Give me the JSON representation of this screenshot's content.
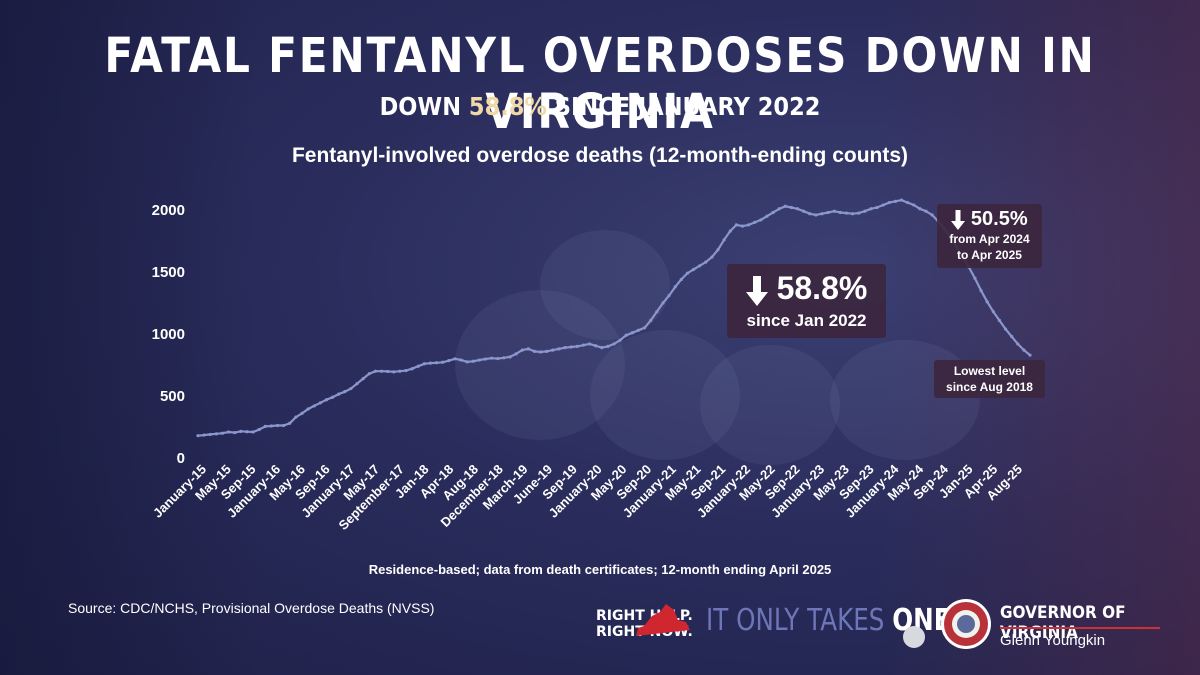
{
  "header": {
    "title": "FATAL FENTANYL OVERDOSES DOWN IN VIRGINIA",
    "subtitle_pre": "DOWN ",
    "subtitle_highlight": "58.8%",
    "subtitle_post": " SINCE JANUARY 2022"
  },
  "chart_data": {
    "type": "line",
    "title": "Fentanyl-involved overdose deaths (12-month-ending counts)",
    "xlabel": "",
    "ylabel": "",
    "ylim": [
      0,
      2000
    ],
    "y_ticks": [
      "0",
      "500",
      "1000",
      "1500",
      "2000"
    ],
    "grid": false,
    "x_tick_labels": [
      "January-15",
      "May-15",
      "Sep-15",
      "January-16",
      "May-16",
      "Sep-16",
      "January-17",
      "May-17",
      "September-17",
      "Jan-18",
      "Apr-18",
      "Aug-18",
      "December-18",
      "March-19",
      "June-19",
      "Sep-19",
      "January-20",
      "May-20",
      "Sep-20",
      "January-21",
      "May-21",
      "Sep-21",
      "January-22",
      "May-22",
      "Sep-22",
      "January-23",
      "May-23",
      "Sep-23",
      "January-24",
      "May-24",
      "Sep-24",
      "Jan-25",
      "Apr-25",
      "Aug-25"
    ],
    "series": [
      {
        "values": [
          180,
          185,
          190,
          195,
          200,
          210,
          205,
          215,
          212,
          210,
          230,
          255,
          258,
          262,
          262,
          280,
          330,
          360,
          395,
          420,
          445,
          470,
          490,
          515,
          535,
          560,
          600,
          640,
          680,
          700,
          700,
          698,
          695,
          700,
          705,
          720,
          740,
          760,
          765,
          768,
          772,
          785,
          800,
          790,
          775,
          780,
          790,
          798,
          805,
          802,
          808,
          815,
          840,
          870,
          880,
          860,
          855,
          860,
          870,
          880,
          890,
          895,
          900,
          910,
          920,
          905,
          890,
          900,
          920,
          950,
          990,
          1010,
          1030,
          1050,
          1110,
          1180,
          1250,
          1310,
          1380,
          1440,
          1490,
          1520,
          1550,
          1580,
          1620,
          1680,
          1760,
          1830,
          1880,
          1870,
          1880,
          1900,
          1920,
          1950,
          1980,
          2010,
          2030,
          2020,
          2010,
          1990,
          1970,
          1960,
          1970,
          1980,
          1990,
          1980,
          1975,
          1970,
          1975,
          1990,
          2010,
          2020,
          2040,
          2060,
          2070,
          2080,
          2060,
          2040,
          2010,
          1990,
          1960,
          1910,
          1850,
          1780,
          1700,
          1620,
          1540,
          1450,
          1350,
          1260,
          1180,
          1110,
          1040,
          980,
          920,
          870,
          830
        ]
      }
    ],
    "annotations": [
      {
        "pct": "58.8%",
        "text": "since Jan 2022"
      },
      {
        "pct": "50.5%",
        "text1": "from Apr 2024",
        "text2": "to Apr 2025"
      },
      {
        "text1": "Lowest level",
        "text2": "since Aug 2018"
      }
    ]
  },
  "footer": {
    "note": "Residence-based; data from death certificates; 12-month ending April 2025",
    "source": "Source: CDC/NCHS, Provisional Overdose Deaths (NVSS)",
    "rh_line1": "RIGHT HELP.",
    "rh_line2": "RIGHT NOW.",
    "ito_pre": "IT ONLY TAKES ",
    "ito_bold": "ONE",
    "gov_title": "GOVERNOR OF VIRGINIA",
    "gov_name": "Glenn Youngkin"
  },
  "colors": {
    "line": "#8a96cc",
    "accent": "#f0d9a8",
    "callout_bg": "#3c263e",
    "brand_red": "#c9303a"
  }
}
